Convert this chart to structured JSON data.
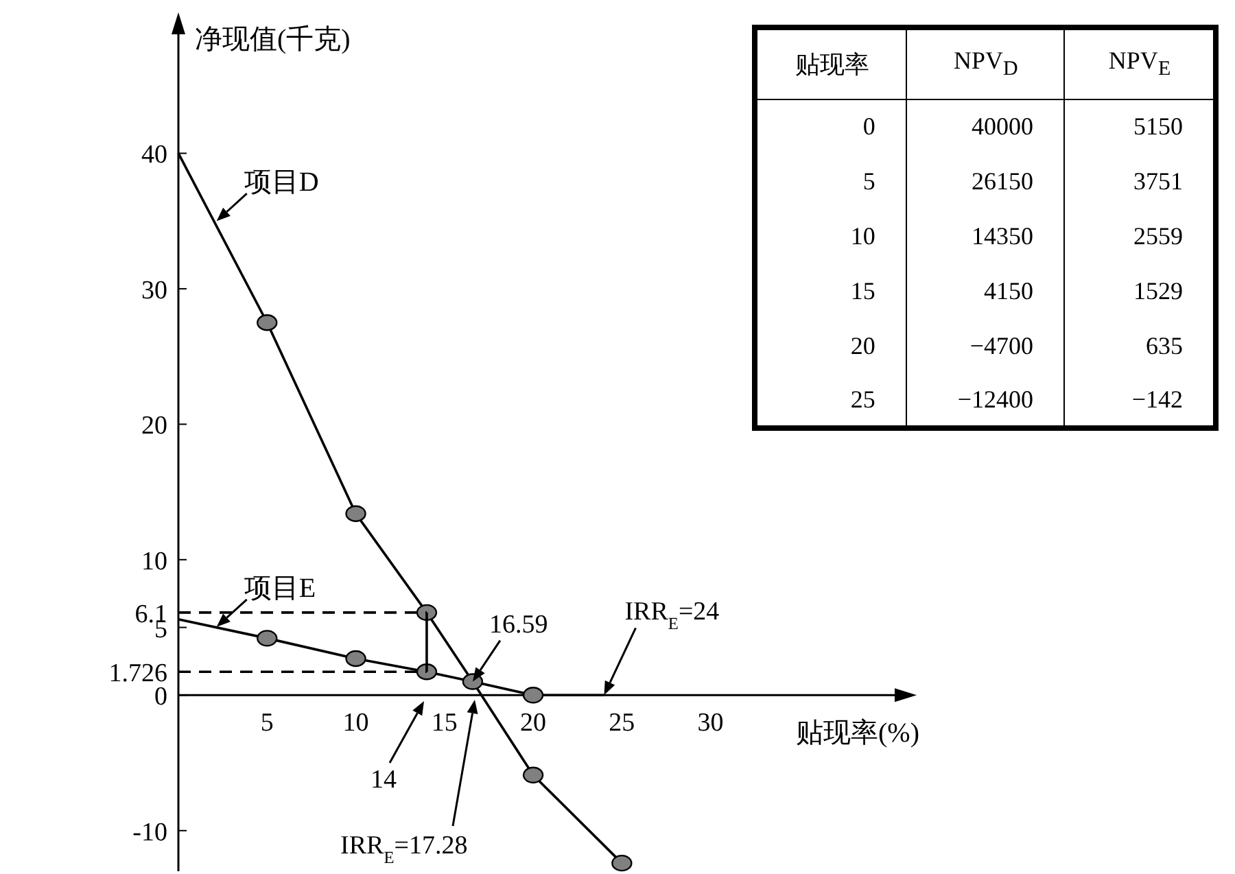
{
  "chart_data": {
    "type": "line",
    "xlabel": "贴现率(%)",
    "ylabel": "净现值(千克)",
    "xlim": [
      0,
      41
    ],
    "ylim": [
      -13,
      50
    ],
    "xticks": [
      5,
      10,
      15,
      20,
      25,
      30
    ],
    "yticks": [
      -10,
      0,
      1.726,
      5,
      6.1,
      10,
      20,
      30,
      40
    ],
    "series": [
      {
        "name": "项目D",
        "color": "#000000",
        "marker": "none",
        "x": [
          0,
          5,
          10,
          14,
          16.59,
          20,
          25
        ],
        "values": [
          40,
          27.5,
          13.4,
          6.1,
          1,
          -5.9,
          -12.4
        ]
      },
      {
        "name": "项目E",
        "color": "#000000",
        "marker": "none",
        "x": [
          0,
          5,
          10,
          14,
          16.59,
          20,
          24
        ],
        "values": [
          5.6,
          4.2,
          2.7,
          1.726,
          1,
          0,
          0
        ]
      },
      {
        "type": "scatter",
        "color": "#808080",
        "marker": "circle",
        "x": [
          5,
          10,
          14,
          16.59,
          20,
          25
        ],
        "values": [
          27.5,
          13.4,
          6.1,
          1,
          -5.9,
          -12.4
        ]
      },
      {
        "type": "scatter",
        "color": "#808080",
        "marker": "circle",
        "x": [
          5,
          10,
          14,
          20
        ],
        "values": [
          4.2,
          2.7,
          1.726,
          0
        ]
      },
      {
        "color": "#000000",
        "marker": "none",
        "line_style": "dashed",
        "x": [
          0,
          14
        ],
        "values": [
          6.1,
          6.1
        ]
      },
      {
        "color": "#000000",
        "marker": "none",
        "line_style": "dashed",
        "x": [
          0,
          14
        ],
        "values": [
          1.726,
          1.726
        ]
      },
      {
        "color": "#000000",
        "marker": "none",
        "x": [
          14,
          14
        ],
        "values": [
          1.726,
          6.1
        ]
      }
    ],
    "annotations": [
      {
        "text": "16.59",
        "x": 16.59,
        "y": 1
      },
      {
        "text": "IRR$_{E}$=24",
        "x": 24,
        "y": 0
      },
      "14",
      "IRR$_{E}$=17.28",
      "贴现率",
      "NPV$_{D}$",
      "NPV$_{E}$",
      "0",
      "40000",
      "5150",
      "5",
      "26150",
      "3751",
      "10",
      "14350",
      "2559",
      "15",
      "4150",
      "1529",
      "20",
      "−4700",
      "635",
      "25",
      "−12400",
      "−142"
    ]
  }
}
